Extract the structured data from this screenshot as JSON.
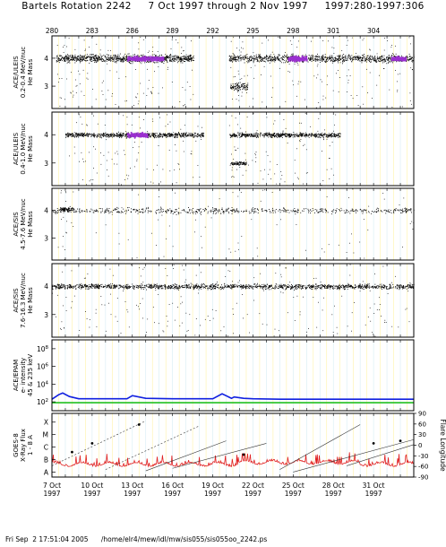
{
  "title": "Bartels Rotation 2242     7 Oct 1997 through 2 Nov 1997     1997:280-1997:306",
  "footer": "Fri Sep  2 17:51:04 2005      /home/elr4/mew/idl/mw/sis055/sis055oo_2242.ps",
  "chart_data": {
    "type": "scatter",
    "x_range_doy": [
      280,
      307
    ],
    "top_ticks": [
      "280",
      "283",
      "286",
      "289",
      "292",
      "295",
      "298",
      "301",
      "304"
    ],
    "top_tick_doy": [
      280,
      283,
      286,
      289,
      292,
      295,
      298,
      301,
      304
    ],
    "bottom_ticks": [
      {
        "day": "7 Oct",
        "year": "1997",
        "doy": 280
      },
      {
        "day": "10 Oct",
        "year": "1997",
        "doy": 283
      },
      {
        "day": "13 Oct",
        "year": "1997",
        "doy": 286
      },
      {
        "day": "16 Oct",
        "year": "1997",
        "doy": 289
      },
      {
        "day": "19 Oct",
        "year": "1997",
        "doy": 292
      },
      {
        "day": "22 Oct",
        "year": "1997",
        "doy": 295
      },
      {
        "day": "25 Oct",
        "year": "1997",
        "doy": 298
      },
      {
        "day": "28 Oct",
        "year": "1997",
        "doy": 301
      },
      {
        "day": "31 Oct",
        "year": "1997",
        "doy": 304
      }
    ],
    "panels": [
      {
        "ylabel": "ACE/ULEIS\n0.2-0.4 MeV/nuc\nHe Mass",
        "yticks": [
          "4",
          "3"
        ],
        "ytick_vals": [
          4,
          3
        ],
        "ylim": [
          2.2,
          4.8
        ],
        "bands": [
          {
            "from": 280.3,
            "to": 290.6,
            "level": 4,
            "density": 1.0,
            "spread": 0.2
          },
          {
            "from": 293.2,
            "to": 307,
            "level": 4,
            "density": 0.8,
            "spread": 0.2
          },
          {
            "from": 293.3,
            "to": 294.6,
            "level": 3,
            "density": 0.9,
            "spread": 0.2
          }
        ],
        "highlights": [
          {
            "from": 285.6,
            "to": 288.3,
            "level": 4,
            "color": "#9b30d0"
          },
          {
            "from": 297.6,
            "to": 299.0,
            "level": 4,
            "color": "#9b30d0"
          },
          {
            "from": 305.3,
            "to": 306.4,
            "level": 4,
            "color": "#9b30d0"
          }
        ]
      },
      {
        "ylabel": "ACE/ULEIS\n0.4-1.0 MeV/nuc\nHe Mass",
        "yticks": [
          "4",
          "3"
        ],
        "ytick_vals": [
          4,
          3
        ],
        "ylim": [
          2.2,
          4.8
        ],
        "bands": [
          {
            "from": 281.0,
            "to": 291.3,
            "level": 4,
            "density": 0.8,
            "spread": 0.12
          },
          {
            "from": 293.2,
            "to": 301.5,
            "level": 4,
            "density": 0.8,
            "spread": 0.12
          },
          {
            "from": 293.3,
            "to": 294.5,
            "level": 3,
            "density": 0.8,
            "spread": 0.1
          }
        ],
        "highlights": [
          {
            "from": 285.6,
            "to": 287.1,
            "level": 4,
            "color": "#9b30d0"
          }
        ]
      },
      {
        "ylabel": "ACE/SIS\n4.5-7.6 MeV/nuc\nHe Mass",
        "yticks": [
          "4",
          "3"
        ],
        "ytick_vals": [
          4,
          3
        ],
        "ylim": [
          2.2,
          4.8
        ],
        "bands": [
          {
            "from": 280,
            "to": 307,
            "level": 4,
            "density": 0.25,
            "spread": 0.15
          },
          {
            "from": 280.6,
            "to": 281.6,
            "level": 4.05,
            "density": 0.9,
            "spread": 0.12
          }
        ],
        "highlights": []
      },
      {
        "ylabel": "ACE/SIS\n7.6-16.3 MeV/nuc\nHe Mass",
        "yticks": [
          "4",
          "3"
        ],
        "ytick_vals": [
          4,
          3
        ],
        "ylim": [
          2.2,
          4.8
        ],
        "bands": [
          {
            "from": 280,
            "to": 307,
            "level": 4,
            "density": 0.6,
            "spread": 0.13
          }
        ],
        "highlights": []
      },
      {
        "ylabel": "ACE/EPAM\ne- intensity\n45 & 235 keV",
        "yticks": [
          "10^8",
          "10^6",
          "10^4",
          "10^2"
        ],
        "ytick_vals": [
          8,
          6,
          4,
          2
        ],
        "ylim": [
          1,
          9
        ],
        "series": [
          {
            "color": "#1020e0",
            "x": [
              280,
              280.5,
              280.8,
              281.3,
              282,
              284,
              285.6,
              286,
              287,
              289,
              292,
              292.7,
              293.4,
              293.6,
              294.3,
              295,
              297,
              300,
              303,
              307
            ],
            "y": [
              2.3,
              2.8,
              3.0,
              2.6,
              2.35,
              2.35,
              2.35,
              2.7,
              2.4,
              2.35,
              2.35,
              2.9,
              2.4,
              2.55,
              2.4,
              2.35,
              2.3,
              2.3,
              2.3,
              2.3
            ]
          },
          {
            "color": "#20c020",
            "x": [
              280,
              307
            ],
            "y": [
              1.9,
              1.9
            ]
          }
        ]
      },
      {
        "ylabel": "GOES-8\nX-Ray Flux\n1 - 8 A",
        "yticks": [
          "X",
          "M",
          "C",
          "B",
          "A"
        ],
        "ytick_vals": [
          5,
          4,
          3,
          2,
          1
        ],
        "ylim": [
          0.6,
          5.7
        ],
        "right_label": "Flare Longitude",
        "right_ticks": [
          "90",
          "60",
          "30",
          "0",
          "-30",
          "-60",
          "-90"
        ],
        "right_tick_vals": [
          90,
          60,
          30,
          0,
          -30,
          -60,
          -90
        ],
        "flux_color": "#e02020"
      }
    ]
  }
}
